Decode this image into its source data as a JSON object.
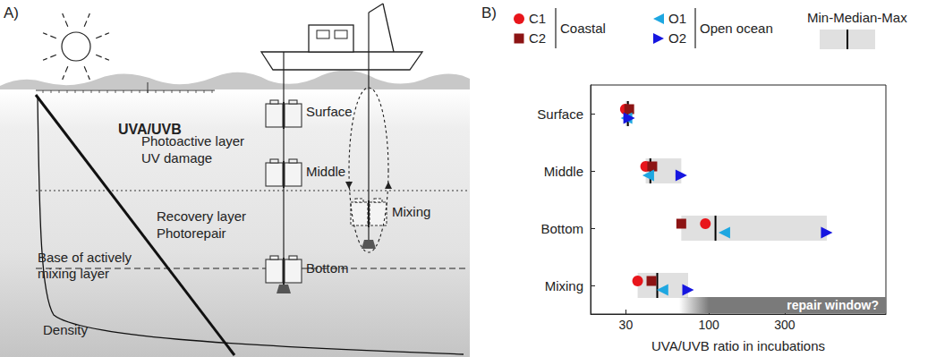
{
  "panel_labels": [
    "A)",
    "B)"
  ],
  "diagram": {
    "light_label": "UVA/UVB",
    "layers": [
      {
        "name": "Photoactive layer",
        "process": "UV damage"
      },
      {
        "name": "Recovery layer",
        "process": "Photorepair"
      }
    ],
    "mixing_base": [
      "Base of actively",
      "mixing layer"
    ],
    "density_label": "Density",
    "bottles": [
      "Surface",
      "Middle",
      "Mixing",
      "Bottom"
    ]
  },
  "chart_data": {
    "type": "scatter",
    "categories": [
      "Surface",
      "Middle",
      "Bottom",
      "Mixing"
    ],
    "series": [
      {
        "name": "C1",
        "color": "#e8151b",
        "marker": "circle",
        "values": [
          29.8,
          40,
          95,
          35.6
        ]
      },
      {
        "name": "C2",
        "color": "#8c1414",
        "marker": "square",
        "values": [
          31.5,
          44,
          67,
          43.5
        ]
      },
      {
        "name": "O1",
        "color": "#1ea7e1",
        "marker": "triangle-left",
        "values": [
          30.3,
          41.5,
          125,
          51
        ]
      },
      {
        "name": "O2",
        "color": "#1616e0",
        "marker": "triangle-right",
        "values": [
          31.5,
          67,
          552,
          74
        ]
      }
    ],
    "groups": [
      {
        "name": "Coastal",
        "members": [
          "C1",
          "C2"
        ]
      },
      {
        "name": "Open ocean",
        "members": [
          "O1",
          "O2"
        ]
      }
    ],
    "ranges": {
      "label": "Min-Median-Max",
      "color": "#e0e0e0",
      "min": [
        29.8,
        40,
        67,
        35.6
      ],
      "median": [
        30.9,
        42.8,
        110,
        47.3
      ],
      "max": [
        31.5,
        67,
        552,
        74
      ]
    },
    "annotation": {
      "text": "repair window?",
      "fade_start": 65,
      "start": 100
    },
    "xlabel": "UVA/UVB ratio in incubations",
    "xlim": [
      18,
      1300
    ],
    "xticks": [
      30,
      100,
      300
    ],
    "log": "x",
    "legend": "top"
  }
}
